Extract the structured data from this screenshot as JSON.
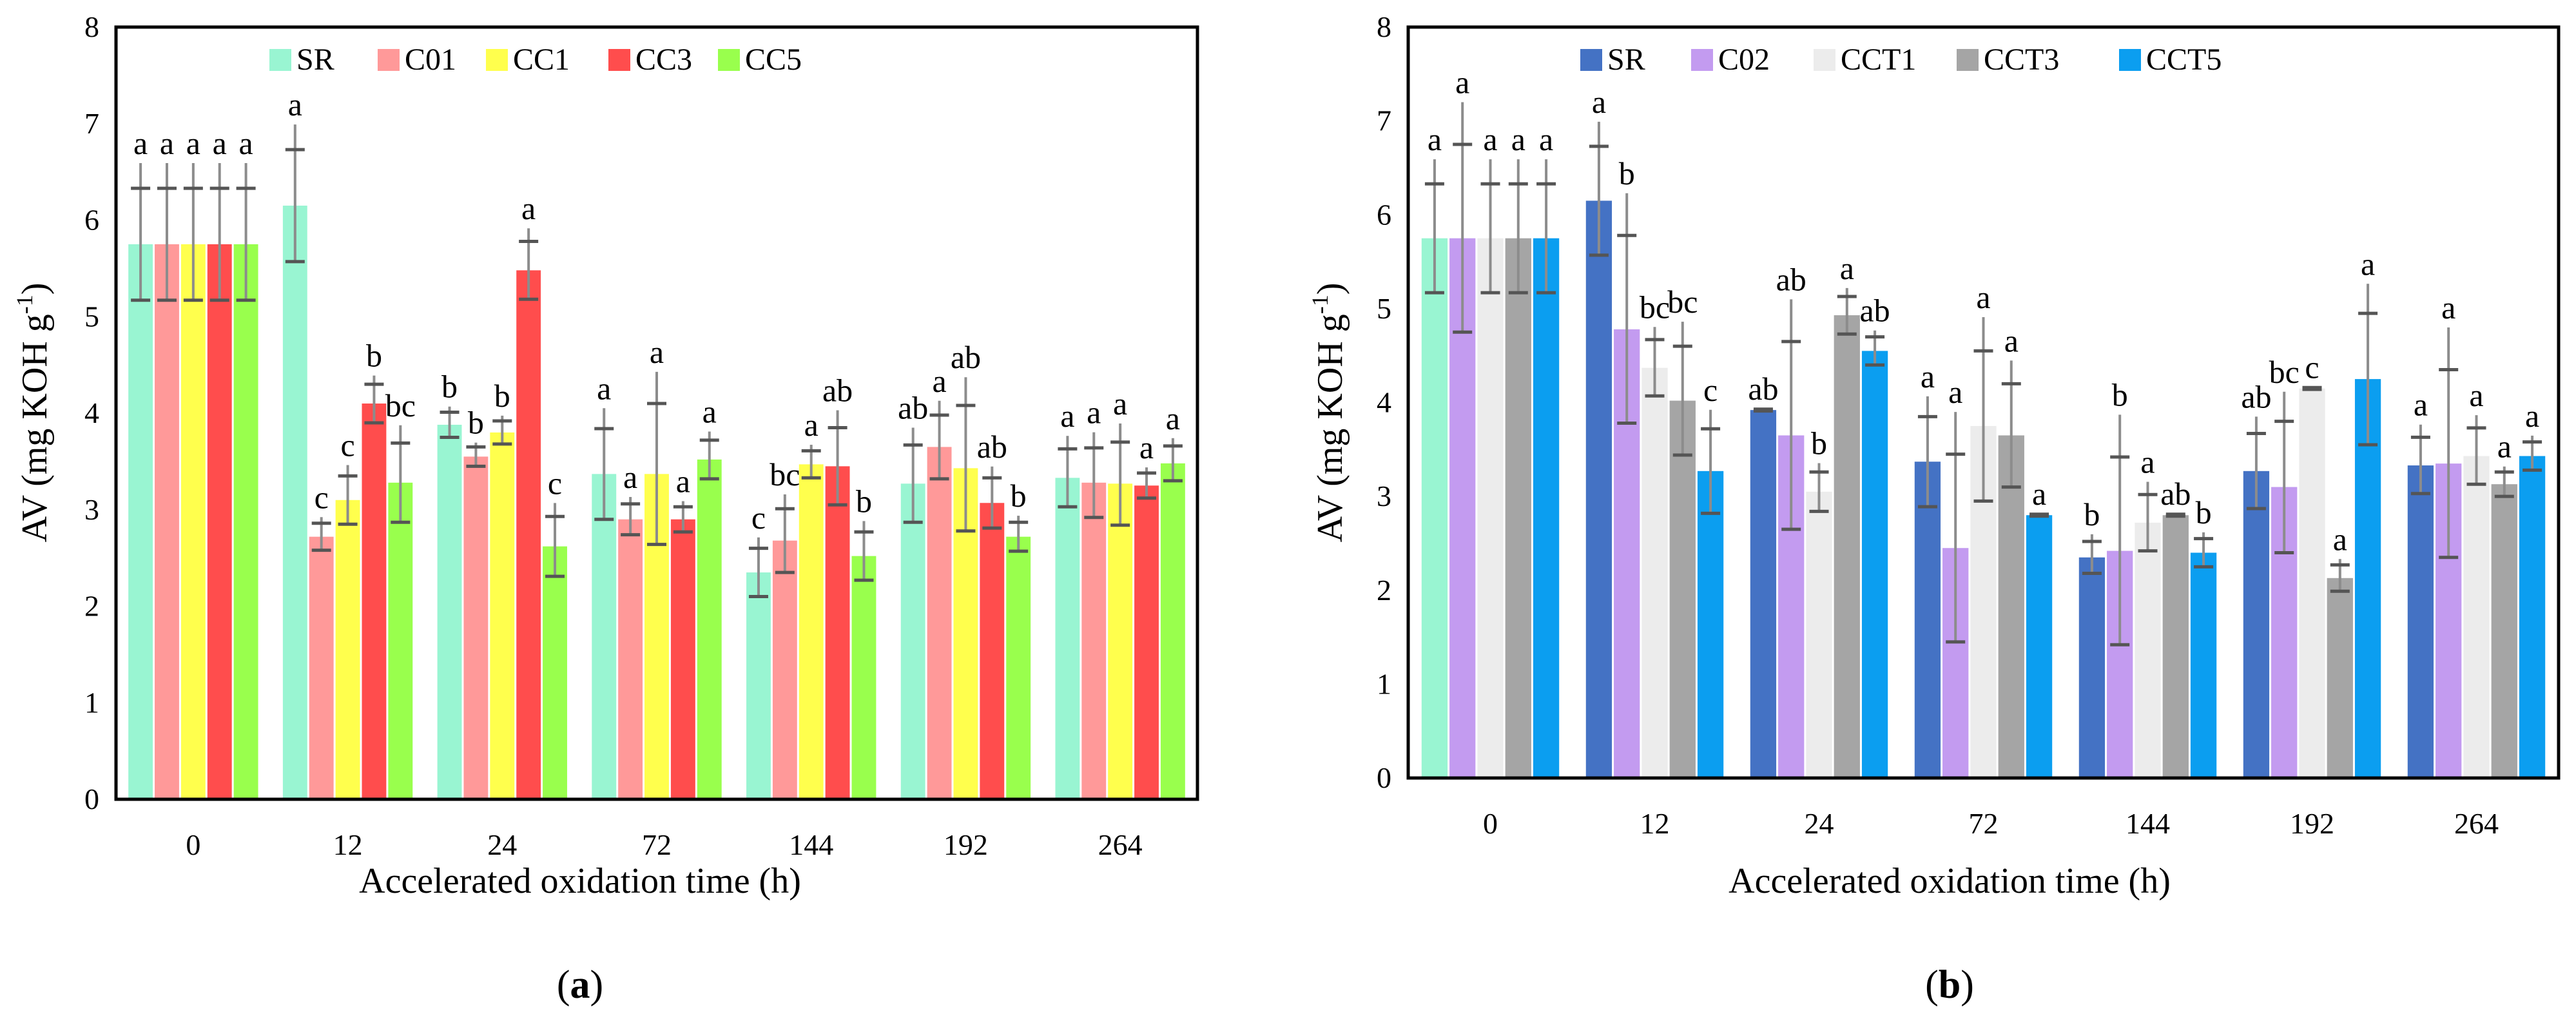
{
  "chart_data": [
    {
      "type": "bar",
      "panel_label_open": "(",
      "panel_label_letter": "a",
      "panel_label_close": ")",
      "xlabel": "Accelerated oxidation time (h)",
      "ylabel_main": "AV (mg KOH g",
      "ylabel_sup": "-1",
      "ylabel_close": ")",
      "ylim": [
        0,
        8
      ],
      "yticks": [
        "0",
        "1",
        "2",
        "3",
        "4",
        "5",
        "6",
        "7",
        "8"
      ],
      "categories": [
        "0",
        "12",
        "24",
        "72",
        "144",
        "192",
        "264"
      ],
      "series": [
        {
          "name": "SR",
          "color": "#99f5d2",
          "values": [
            5.75,
            6.15,
            3.88,
            3.37,
            2.35,
            3.27,
            3.33
          ],
          "errors": [
            0.58,
            0.58,
            0.13,
            0.47,
            0.25,
            0.4,
            0.3
          ],
          "letters": [
            "a",
            "a",
            "b",
            "a",
            "c",
            "ab",
            "a"
          ]
        },
        {
          "name": "C01",
          "color": "#ff9999",
          "values": [
            5.75,
            2.72,
            3.55,
            2.9,
            2.68,
            3.65,
            3.28
          ],
          "errors": [
            0.58,
            0.14,
            0.1,
            0.16,
            0.33,
            0.33,
            0.36
          ],
          "letters": [
            "a",
            "c",
            "b",
            "a",
            "bc",
            "a",
            "a"
          ]
        },
        {
          "name": "CC1",
          "color": "#ffff4d",
          "values": [
            5.75,
            3.1,
            3.8,
            3.37,
            3.47,
            3.43,
            3.27
          ],
          "errors": [
            0.58,
            0.25,
            0.12,
            0.73,
            0.14,
            0.65,
            0.43
          ],
          "letters": [
            "a",
            "c",
            "b",
            "a",
            "a",
            "ab",
            "a"
          ]
        },
        {
          "name": "CC3",
          "color": "#ff4d4d",
          "values": [
            5.75,
            4.1,
            5.48,
            2.9,
            3.45,
            3.07,
            3.25
          ],
          "errors": [
            0.58,
            0.2,
            0.3,
            0.13,
            0.4,
            0.26,
            0.13
          ],
          "letters": [
            "a",
            "b",
            "a",
            "a",
            "ab",
            "ab",
            "a"
          ]
        },
        {
          "name": "CC5",
          "color": "#99ff4d",
          "values": [
            5.75,
            3.28,
            2.62,
            3.52,
            2.52,
            2.72,
            3.48
          ],
          "errors": [
            0.58,
            0.41,
            0.31,
            0.2,
            0.25,
            0.15,
            0.18
          ],
          "letters": [
            "a",
            "bc",
            "c",
            "a",
            "b",
            "b",
            "a"
          ]
        }
      ]
    },
    {
      "type": "bar",
      "panel_label_open": "(",
      "panel_label_letter": "b",
      "panel_label_close": ")",
      "xlabel": "Accelerated oxidation time (h)",
      "ylabel_main": "AV (mg KOH g",
      "ylabel_sup": "-1",
      "ylabel_close": ")",
      "ylim": [
        0,
        8
      ],
      "yticks": [
        "0",
        "1",
        "2",
        "3",
        "4",
        "5",
        "6",
        "7",
        "8"
      ],
      "categories": [
        "0",
        "12",
        "24",
        "72",
        "144",
        "192",
        "264"
      ],
      "series": [
        {
          "name": "SR",
          "color": "#4472c4",
          "first_color": "#99f5d2",
          "values": [
            5.75,
            6.15,
            3.92,
            3.37,
            2.35,
            3.27,
            3.33
          ],
          "errors": [
            0.58,
            0.58,
            0.01,
            0.48,
            0.17,
            0.4,
            0.3
          ],
          "letters": [
            "a",
            "a",
            "ab",
            "a",
            "b",
            "ab",
            "a"
          ]
        },
        {
          "name": "C02",
          "color": "#c39bf0",
          "values": [
            5.75,
            4.78,
            3.65,
            2.45,
            2.42,
            3.1,
            3.35
          ],
          "errors": [
            1.0,
            1.0,
            1.0,
            1.0,
            1.0,
            0.7,
            1.0
          ],
          "letters": [
            "a",
            "b",
            "ab",
            "a",
            "b",
            "bc",
            "a"
          ]
        },
        {
          "name": "CCT1",
          "color": "#ececec",
          "values": [
            5.75,
            4.37,
            3.05,
            3.75,
            2.72,
            4.15,
            3.43
          ],
          "errors": [
            0.58,
            0.3,
            0.21,
            0.8,
            0.3,
            0.01,
            0.3
          ],
          "letters": [
            "a",
            "bc",
            "b",
            "a",
            "a",
            "c",
            "a"
          ]
        },
        {
          "name": "CCT3",
          "color": "#a5a5a5",
          "values": [
            5.75,
            4.02,
            4.93,
            3.65,
            2.8,
            2.13,
            3.13
          ],
          "errors": [
            0.58,
            0.58,
            0.2,
            0.55,
            0.01,
            0.14,
            0.13
          ],
          "letters": [
            "a",
            "bc",
            "a",
            "a",
            "ab",
            "a",
            "a"
          ]
        },
        {
          "name": "CCT5",
          "color": "#0b9ef0",
          "values": [
            5.75,
            3.27,
            4.55,
            2.8,
            2.4,
            4.25,
            3.43
          ],
          "errors": [
            0.58,
            0.45,
            0.15,
            0.01,
            0.15,
            0.7,
            0.15
          ],
          "letters": [
            "a",
            "c",
            "ab",
            "a",
            "b",
            "a",
            "a"
          ]
        }
      ]
    }
  ]
}
